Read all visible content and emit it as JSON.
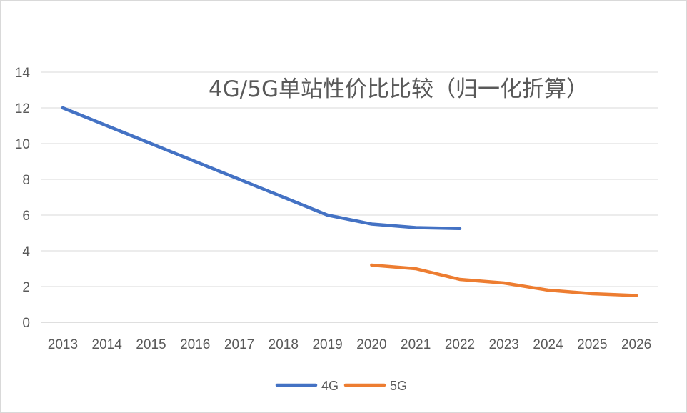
{
  "chart_data": {
    "type": "line",
    "title": "4G/5G单站性价比比较（归一化折算）",
    "categories": [
      "2013",
      "2014",
      "2015",
      "2016",
      "2017",
      "2018",
      "2019",
      "2020",
      "2021",
      "2022",
      "2023",
      "2024",
      "2025",
      "2026"
    ],
    "series": [
      {
        "name": "4G",
        "color": "#4472C4",
        "values": [
          12,
          11,
          10,
          9,
          8,
          7,
          6,
          5.5,
          5.3,
          5.25,
          null,
          null,
          null,
          null
        ]
      },
      {
        "name": "5G",
        "color": "#ED7D31",
        "values": [
          null,
          null,
          null,
          null,
          null,
          null,
          null,
          3.2,
          3.0,
          2.4,
          2.2,
          1.8,
          1.6,
          1.5
        ]
      }
    ],
    "ylim": [
      0,
      14
    ],
    "yticks": [
      0,
      2,
      4,
      6,
      8,
      10,
      12,
      14
    ],
    "grid": true,
    "legend_position": "bottom"
  }
}
